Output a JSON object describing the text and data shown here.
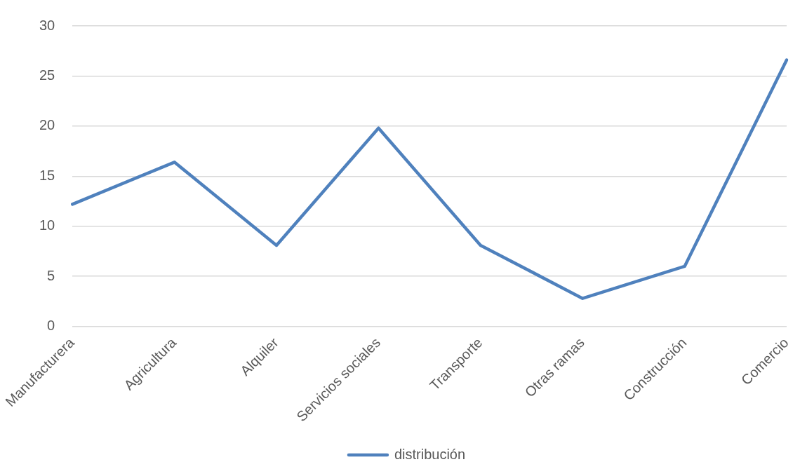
{
  "chart_data": {
    "type": "line",
    "categories": [
      "Manufacturera",
      "Agricultura",
      "Alquiler",
      "Servicios sociales",
      "Transporte",
      "Otras ramas",
      "Construcción",
      "Comercio"
    ],
    "series": [
      {
        "name": "distribución",
        "color": "#4f81bd",
        "values": [
          12.2,
          16.4,
          8.1,
          19.8,
          8.1,
          2.8,
          6.0,
          26.6
        ]
      }
    ],
    "ylim": [
      0,
      30
    ],
    "yticks": [
      0,
      5,
      10,
      15,
      20,
      25,
      30
    ],
    "grid": "y",
    "legend": "bottom",
    "marker": "none",
    "line_style": "solid"
  }
}
